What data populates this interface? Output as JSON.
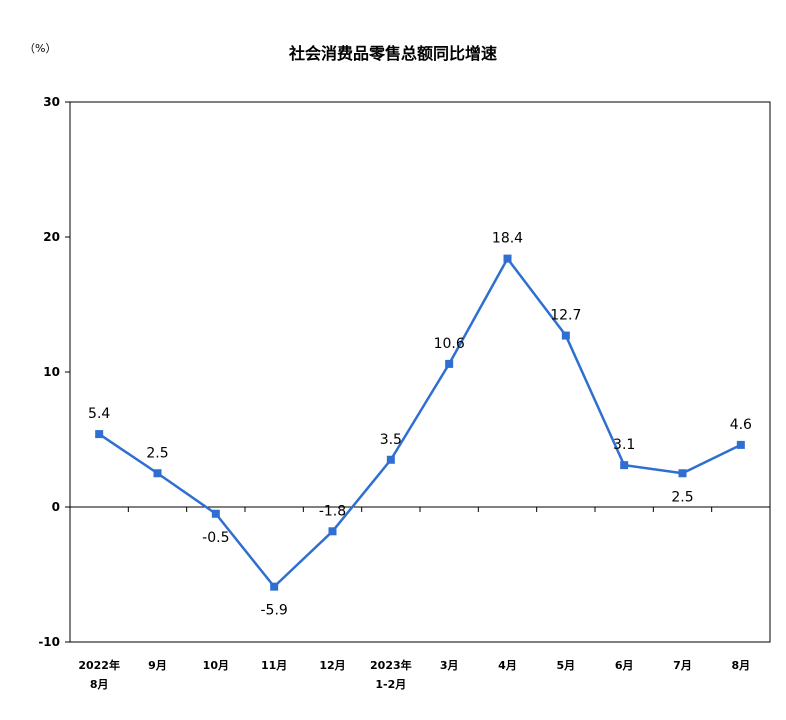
{
  "chart_data": {
    "type": "line",
    "title": "社会消费品零售总额同比增速",
    "unit_label": "（%）",
    "xlabel": "",
    "ylabel": "",
    "ylim": [
      -10,
      30
    ],
    "yticks": [
      30,
      20,
      10,
      0,
      -10
    ],
    "categories": [
      [
        "2022年",
        "8月"
      ],
      [
        "9月"
      ],
      [
        "10月"
      ],
      [
        "11月"
      ],
      [
        "12月"
      ],
      [
        "2023年",
        "1-2月"
      ],
      [
        "3月"
      ],
      [
        "4月"
      ],
      [
        "5月"
      ],
      [
        "6月"
      ],
      [
        "7月"
      ],
      [
        "8月"
      ]
    ],
    "series": [
      {
        "values": [
          5.4,
          2.5,
          -0.5,
          -5.9,
          -1.8,
          3.5,
          10.6,
          18.4,
          12.7,
          3.1,
          2.5,
          4.6
        ],
        "labels": [
          "5.4",
          "2.5",
          "-0.5",
          "-5.9",
          "-1.8",
          "3.5",
          "10.6",
          "18.4",
          "12.7",
          "3.1",
          "2.5",
          "4.6"
        ],
        "color": "#2f6fd1"
      }
    ],
    "grid": false,
    "legend": "none"
  }
}
